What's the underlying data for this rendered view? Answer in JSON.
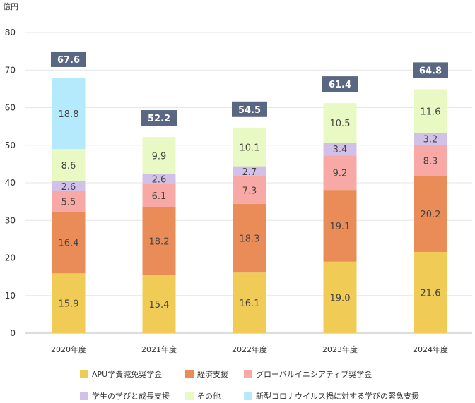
{
  "chart_data": {
    "type": "bar",
    "stacked": true,
    "unit_label": "億円",
    "categories": [
      "2020年度",
      "2021年度",
      "2022年度",
      "2023年度",
      "2024年度"
    ],
    "ylim": [
      0,
      80
    ],
    "yticks": [
      0,
      10,
      20,
      30,
      40,
      50,
      60,
      70,
      80
    ],
    "yticks_labels": [
      "0",
      "10",
      "20",
      "30",
      "40",
      "50",
      "60",
      "70",
      "80"
    ],
    "grid": true,
    "legend_position": "bottom",
    "series": [
      {
        "name": "APU学費減免奨学金",
        "color": "#f0cb55",
        "values": [
          15.9,
          15.4,
          16.1,
          19.0,
          21.6
        ],
        "labels": [
          "15.9",
          "15.4",
          "16.1",
          "19.0",
          "21.6"
        ]
      },
      {
        "name": "経済支援",
        "color": "#ea8c58",
        "values": [
          16.4,
          18.2,
          18.3,
          19.1,
          20.2
        ],
        "labels": [
          "16.4",
          "18.2",
          "18.3",
          "19.1",
          "20.2"
        ]
      },
      {
        "name": "グローバルイニシアティブ奨学金",
        "color": "#f8a8a5",
        "values": [
          5.5,
          6.1,
          7.3,
          9.2,
          8.3
        ],
        "labels": [
          "5.5",
          "6.1",
          "7.3",
          "9.2",
          "8.3"
        ]
      },
      {
        "name": "学生の学びと成長支援",
        "color": "#d1c0e8",
        "values": [
          2.6,
          2.6,
          2.7,
          3.4,
          3.2
        ],
        "labels": [
          "2.6",
          "2.6",
          "2.7",
          "3.4",
          "3.2"
        ]
      },
      {
        "name": "その他",
        "color": "#e9f9c3",
        "values": [
          8.6,
          9.9,
          10.1,
          10.5,
          11.6
        ],
        "labels": [
          "8.6",
          "9.9",
          "10.1",
          "10.5",
          "11.6"
        ]
      },
      {
        "name": "新型コロナウイルス禍に対する学びの緊急支援",
        "color": "#b4eafb",
        "values": [
          18.8,
          0,
          0,
          0,
          0
        ],
        "labels": [
          "18.8",
          "",
          "",
          "",
          ""
        ]
      }
    ],
    "totals": [
      67.6,
      52.2,
      54.5,
      61.4,
      64.8
    ],
    "totals_labels": [
      "67.6",
      "52.2",
      "54.5",
      "61.4",
      "64.8"
    ],
    "total_badge_color": "#5a6783"
  }
}
